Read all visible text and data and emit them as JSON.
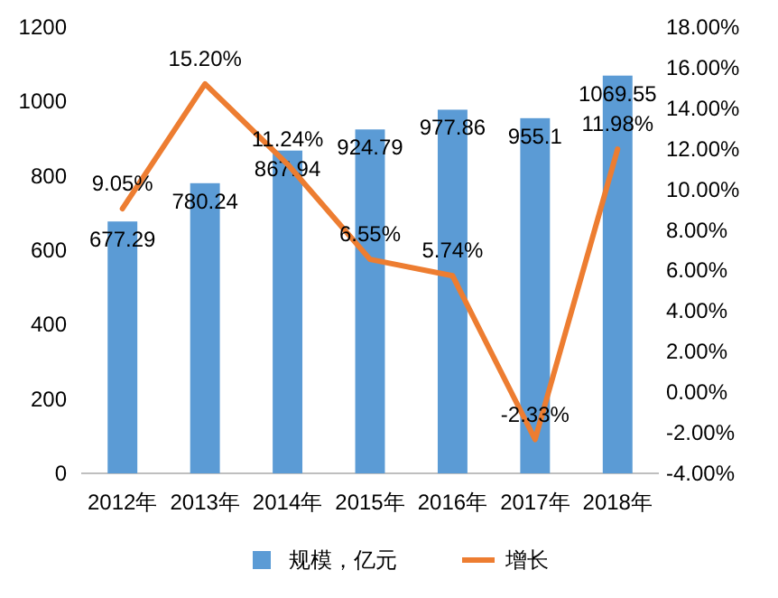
{
  "chart_data": {
    "type": "bar",
    "categories": [
      "2012年",
      "2013年",
      "2014年",
      "2015年",
      "2016年",
      "2017年",
      "2018年"
    ],
    "series": [
      {
        "name": "规模，亿元",
        "color": "#5b9bd5",
        "values": [
          677.29,
          780.24,
          867.94,
          924.79,
          977.86,
          955.1,
          1069.55
        ],
        "value_labels": [
          "677.29",
          "780.24",
          "867.94",
          "924.79",
          "977.86",
          "955.1",
          "1069.55"
        ]
      },
      {
        "name": "增长",
        "type": "line",
        "axis": "y2",
        "color": "#ed7d31",
        "values": [
          9.05,
          15.2,
          11.24,
          6.55,
          5.74,
          -2.33,
          11.98
        ],
        "value_labels": [
          "9.05%",
          "15.20%",
          "11.24%",
          "6.55%",
          "5.74%",
          "-2.33%",
          "11.98%"
        ]
      }
    ],
    "ylim": [
      0,
      1200
    ],
    "yticks": [
      0,
      200,
      400,
      600,
      800,
      1000,
      1200
    ],
    "y2lim": [
      -4,
      18
    ],
    "y2ticks": [
      {
        "value": -4,
        "label": "-4.00%"
      },
      {
        "value": -2,
        "label": "-2.00%"
      },
      {
        "value": 0,
        "label": "0.00%"
      },
      {
        "value": 2,
        "label": "2.00%"
      },
      {
        "value": 4,
        "label": "4.00%"
      },
      {
        "value": 6,
        "label": "6.00%"
      },
      {
        "value": 8,
        "label": "8.00%"
      },
      {
        "value": 10,
        "label": "10.00%"
      },
      {
        "value": 12,
        "label": "12.00%"
      },
      {
        "value": 14,
        "label": "14.00%"
      },
      {
        "value": 16,
        "label": "16.00%"
      },
      {
        "value": 18,
        "label": "18.00%"
      }
    ],
    "legend": "bottom",
    "grid": false
  }
}
